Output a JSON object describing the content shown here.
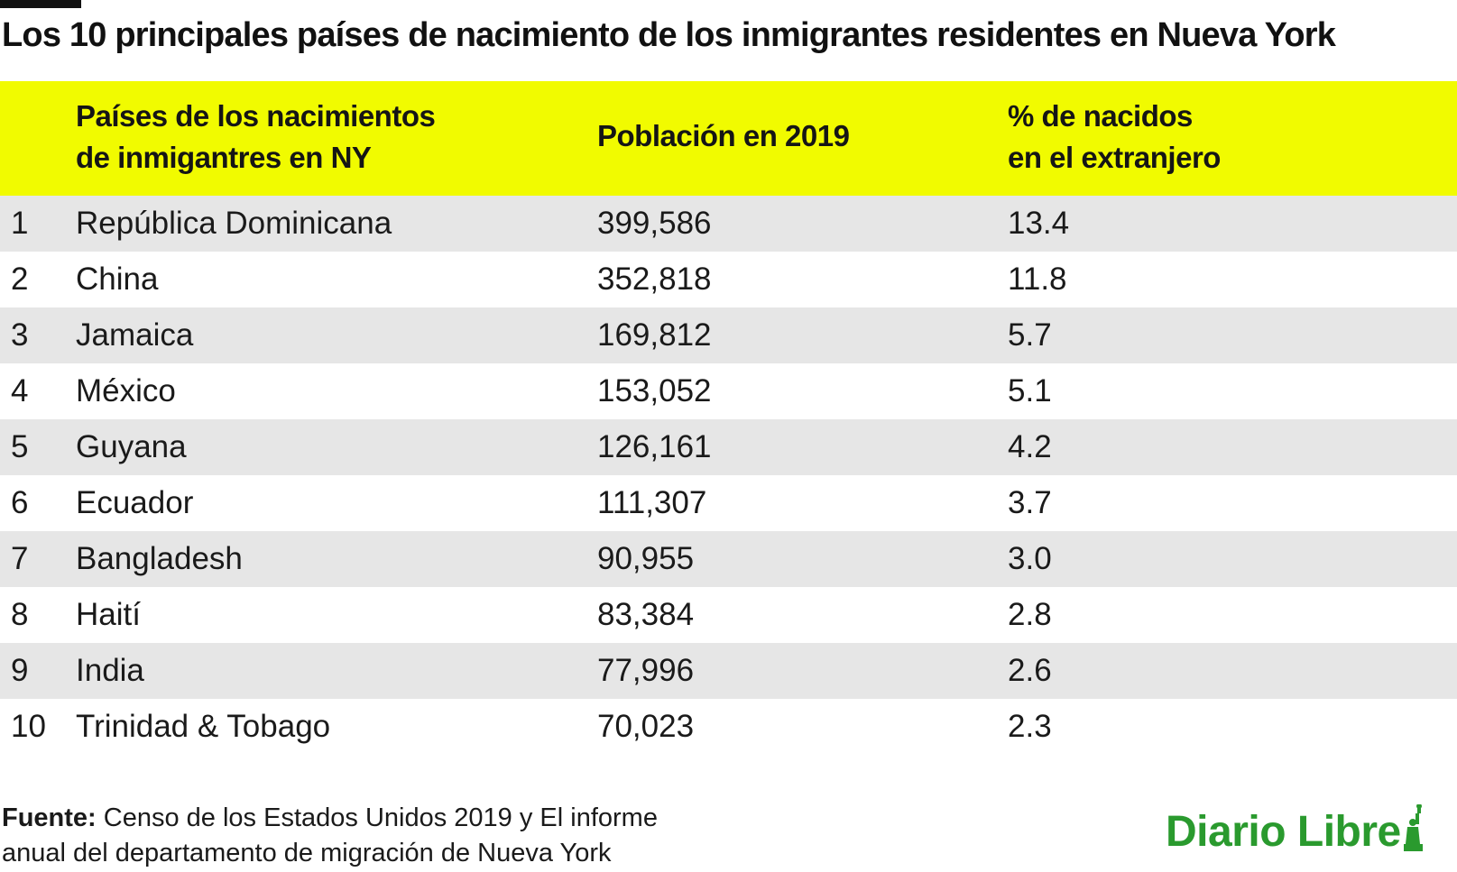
{
  "title": "Los 10 principales países de nacimiento de los inmigrantes residentes en Nueva York",
  "chart_data": {
    "type": "table",
    "columns": [
      "",
      "Países de los nacimientos de inmigantres en NY",
      "Población en 2019",
      "% de nacidos en el extranjero"
    ],
    "headers": {
      "country_line1": "Países de los nacimientos",
      "country_line2": "de inmigantres en NY",
      "population": "Población en 2019",
      "pct_line1": "% de nacidos",
      "pct_line2": "en el extranjero"
    },
    "rows": [
      {
        "rank": "1",
        "country": "República Dominicana",
        "population": "399,586",
        "pct": "13.4"
      },
      {
        "rank": "2",
        "country": "China",
        "population": "352,818",
        "pct": "11.8"
      },
      {
        "rank": "3",
        "country": "Jamaica",
        "population": "169,812",
        "pct": "5.7"
      },
      {
        "rank": "4",
        "country": "México",
        "population": "153,052",
        "pct": "5.1"
      },
      {
        "rank": "5",
        "country": "Guyana",
        "population": "126,161",
        "pct": "4.2"
      },
      {
        "rank": "6",
        "country": "Ecuador",
        "population": "111,307",
        "pct": "3.7"
      },
      {
        "rank": "7",
        "country": "Bangladesh",
        "population": "90,955",
        "pct": "3.0"
      },
      {
        "rank": "8",
        "country": "Haití",
        "population": "83,384",
        "pct": "2.8"
      },
      {
        "rank": "9",
        "country": "India",
        "population": "77,996",
        "pct": "2.6"
      },
      {
        "rank": "10",
        "country": "Trinidad & Tobago",
        "population": "70,023",
        "pct": "2.3"
      }
    ]
  },
  "footer": {
    "source_label": "Fuente:",
    "source_line1": " Censo de los Estados Unidos 2019 y El informe",
    "source_line2": "anual del departamento de migración de Nueva York"
  },
  "logo": {
    "text": "Diario Libre"
  },
  "colors": {
    "header_bg": "#f1fb00",
    "row_shade": "#e6e6e6",
    "logo_green": "#2a9a2e"
  }
}
